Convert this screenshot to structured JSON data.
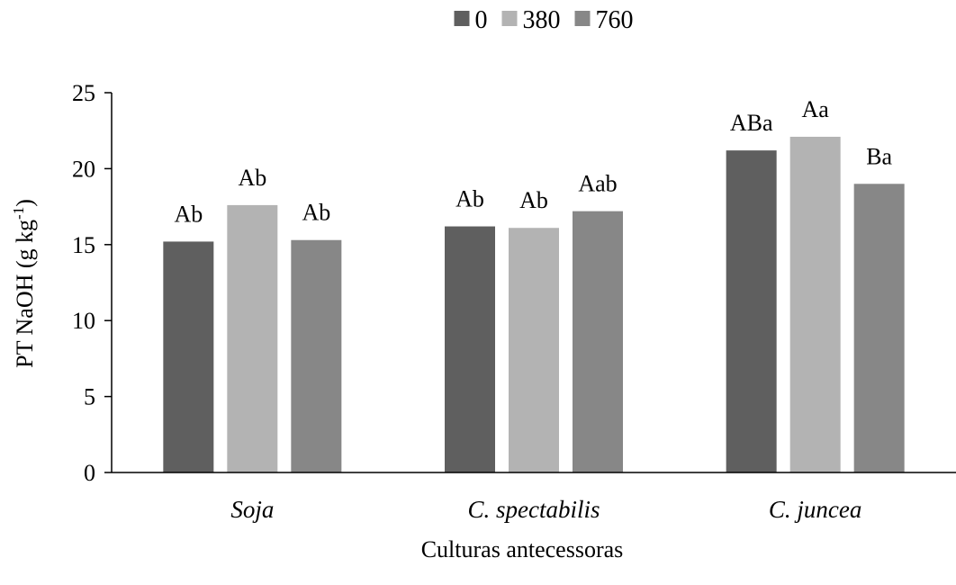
{
  "chart_data": {
    "type": "bar",
    "title": "",
    "xlabel": "Culturas antecessoras",
    "ylabel_main": "PT NaOH (g kg",
    "ylabel_sup": "-1",
    "ylabel_close": ")",
    "ylim": [
      0,
      25
    ],
    "yticks": [
      0,
      5,
      10,
      15,
      20,
      25
    ],
    "grid": false,
    "legend_position": "top-center",
    "categories": [
      "Soja",
      "C. spectabilis",
      "C. juncea"
    ],
    "series": [
      {
        "name": "0",
        "color": "#5f5f5f",
        "values": [
          15.2,
          16.2,
          21.2
        ],
        "labels": [
          "Ab",
          "Ab",
          "ABa"
        ]
      },
      {
        "name": "380",
        "color": "#b3b3b3",
        "values": [
          17.6,
          16.1,
          22.1
        ],
        "labels": [
          "Ab",
          "Ab",
          "Aa"
        ]
      },
      {
        "name": "760",
        "color": "#878787",
        "values": [
          15.3,
          17.2,
          19.0
        ],
        "labels": [
          "Ab",
          "Aab",
          "Ba"
        ]
      }
    ]
  }
}
